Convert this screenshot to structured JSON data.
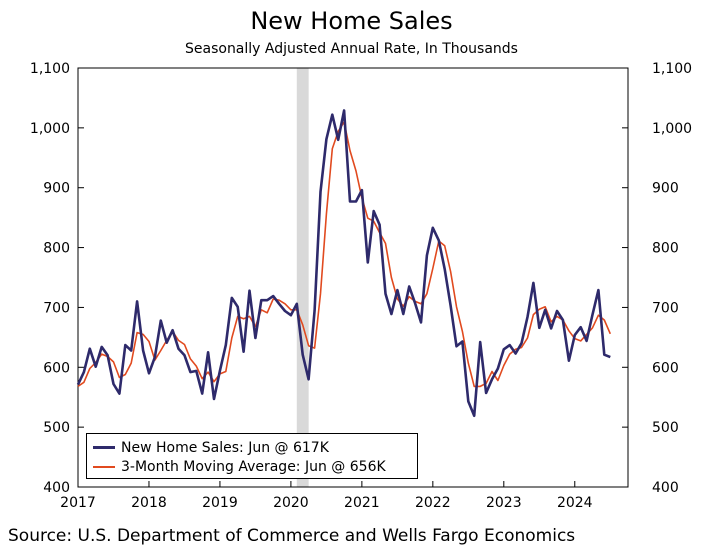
{
  "chart_data": {
    "type": "line",
    "title": "New Home Sales",
    "subtitle": "Seasonally Adjusted Annual Rate, In Thousands",
    "source": "Source: U.S. Department of Commerce and Wells Fargo Economics",
    "ylim": [
      400,
      1100
    ],
    "yticks": [
      400,
      500,
      600,
      700,
      800,
      900,
      1000,
      1100
    ],
    "ytick_labels": [
      "400",
      "500",
      "600",
      "700",
      "800",
      "900",
      "1,000",
      "1,100"
    ],
    "xlim": [
      2017,
      2024.75
    ],
    "xticks": [
      2017,
      2018,
      2019,
      2020,
      2021,
      2022,
      2023,
      2024
    ],
    "xtick_labels": [
      "2017",
      "2018",
      "2019",
      "2020",
      "2021",
      "2022",
      "2023",
      "2024"
    ],
    "recession_band": [
      2020.083,
      2020.25
    ],
    "legend_position": "bottom-left",
    "x_start": 2017.0,
    "x_step_months": 1,
    "series": [
      {
        "name": "New Home Sales: Jun @ 617K",
        "color": "#2e2a6b",
        "values": [
          571,
          592,
          631,
          601,
          634,
          620,
          572,
          556,
          637,
          628,
          710,
          628,
          590,
          617,
          678,
          641,
          662,
          631,
          620,
          592,
          594,
          556,
          625,
          547,
          594,
          637,
          716,
          701,
          626,
          728,
          649,
          712,
          712,
          719,
          706,
          694,
          687,
          706,
          621,
          580,
          695,
          893,
          981,
          1022,
          980,
          1029,
          877,
          877,
          896,
          775,
          861,
          838,
          723,
          689,
          729,
          689,
          735,
          707,
          675,
          787,
          833,
          812,
          764,
          703,
          635,
          643,
          543,
          519,
          642,
          557,
          580,
          598,
          630,
          637,
          623,
          640,
          684,
          741,
          666,
          696,
          665,
          694,
          679,
          611,
          654,
          667,
          644,
          688,
          729,
          621,
          617
        ]
      },
      {
        "name": "3-Month Moving Average: Jun @ 656K",
        "color": "#e14a1f",
        "values": [
          568,
          575,
          598,
          608,
          622,
          618,
          609,
          583,
          588,
          607,
          658,
          655,
          643,
          612,
          628,
          645,
          660,
          645,
          638,
          614,
          602,
          581,
          592,
          576,
          589,
          593,
          649,
          685,
          681,
          685,
          668,
          696,
          691,
          714,
          712,
          706,
          696,
          696,
          671,
          636,
          632,
          723,
          856,
          965,
          994,
          1010,
          962,
          928,
          883,
          849,
          844,
          825,
          807,
          750,
          714,
          702,
          718,
          710,
          706,
          723,
          765,
          811,
          803,
          760,
          701,
          660,
          607,
          568,
          568,
          573,
          593,
          578,
          603,
          622,
          630,
          633,
          649,
          688,
          697,
          701,
          676,
          685,
          679,
          661,
          648,
          644,
          655,
          666,
          687,
          679,
          656
        ]
      }
    ]
  }
}
